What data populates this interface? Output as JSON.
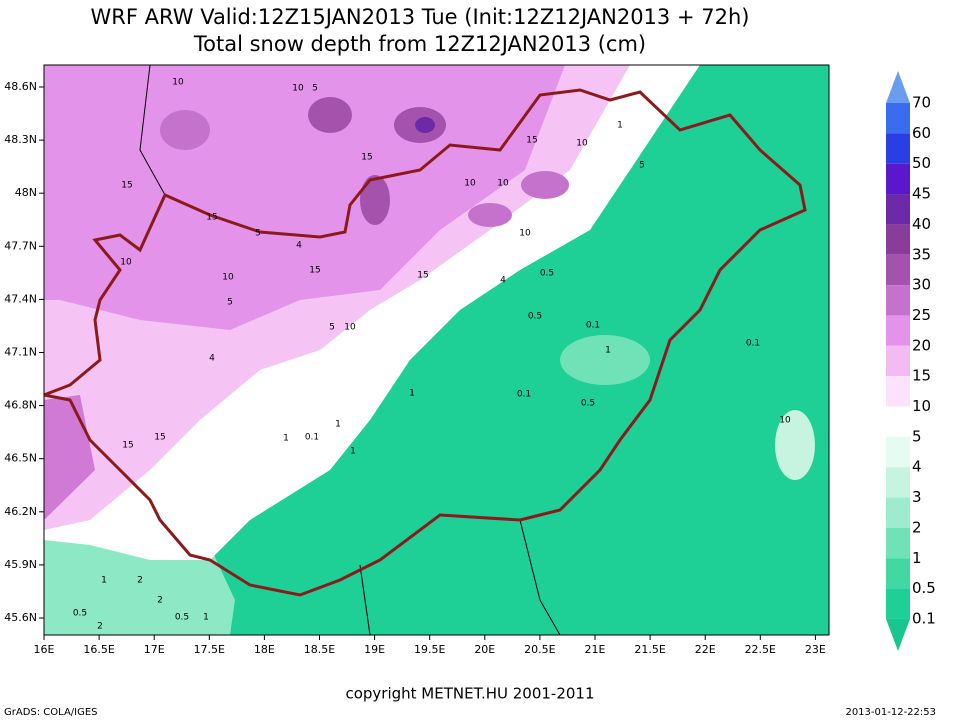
{
  "header": {
    "title": "WRF ARW Valid:12Z15JAN2013 Tue (Init:12Z12JAN2013 + 72h)",
    "subtitle": "Total snow depth from 12Z12JAN2013 (cm)"
  },
  "map": {
    "lon_ticks": [
      "16E",
      "16.5E",
      "17E",
      "17.5E",
      "18E",
      "18.5E",
      "19E",
      "19.5E",
      "20E",
      "20.5E",
      "21E",
      "21.5E",
      "22E",
      "22.5E",
      "23E"
    ],
    "lat_ticks": [
      "48.6N",
      "48.3N",
      "48N",
      "47.7N",
      "47.4N",
      "47.1N",
      "46.8N",
      "46.5N",
      "46.2N",
      "45.9N",
      "45.6N"
    ],
    "contour_labels": [
      10,
      10,
      5,
      15,
      15,
      10,
      10,
      10,
      10,
      15,
      15,
      10,
      5,
      5,
      10,
      4,
      15,
      10,
      15,
      5,
      4,
      15,
      15,
      0.5,
      0.1,
      1,
      0.1,
      0.1,
      0.5,
      1,
      4,
      0.5,
      10,
      0.5,
      1,
      2,
      1,
      2,
      0.5,
      2,
      5,
      1,
      1,
      0.1,
      1,
      1
    ]
  },
  "legend": {
    "levels": [
      70,
      60,
      50,
      45,
      40,
      35,
      30,
      25,
      20,
      15,
      10,
      5,
      4,
      3,
      2,
      1,
      0.5,
      0.1
    ],
    "colors": [
      "#6a9cf0",
      "#3a6cf0",
      "#2a3ee6",
      "#5a18cc",
      "#6c2aa8",
      "#8a3c9a",
      "#a452ac",
      "#c472cc",
      "#e394ea",
      "#f2bcf2",
      "#fde2fb",
      "#ffffff",
      "#e6fbf2",
      "#c6f4e0",
      "#9eeccf",
      "#6fe2b8",
      "#42d8a4",
      "#1ecf96",
      "#18c68e"
    ]
  },
  "footer": {
    "copyright": "copyright METNET.HU 2001-2011",
    "left": "GrADS: COLA/IGES",
    "right": "2013-01-12-22:53"
  }
}
